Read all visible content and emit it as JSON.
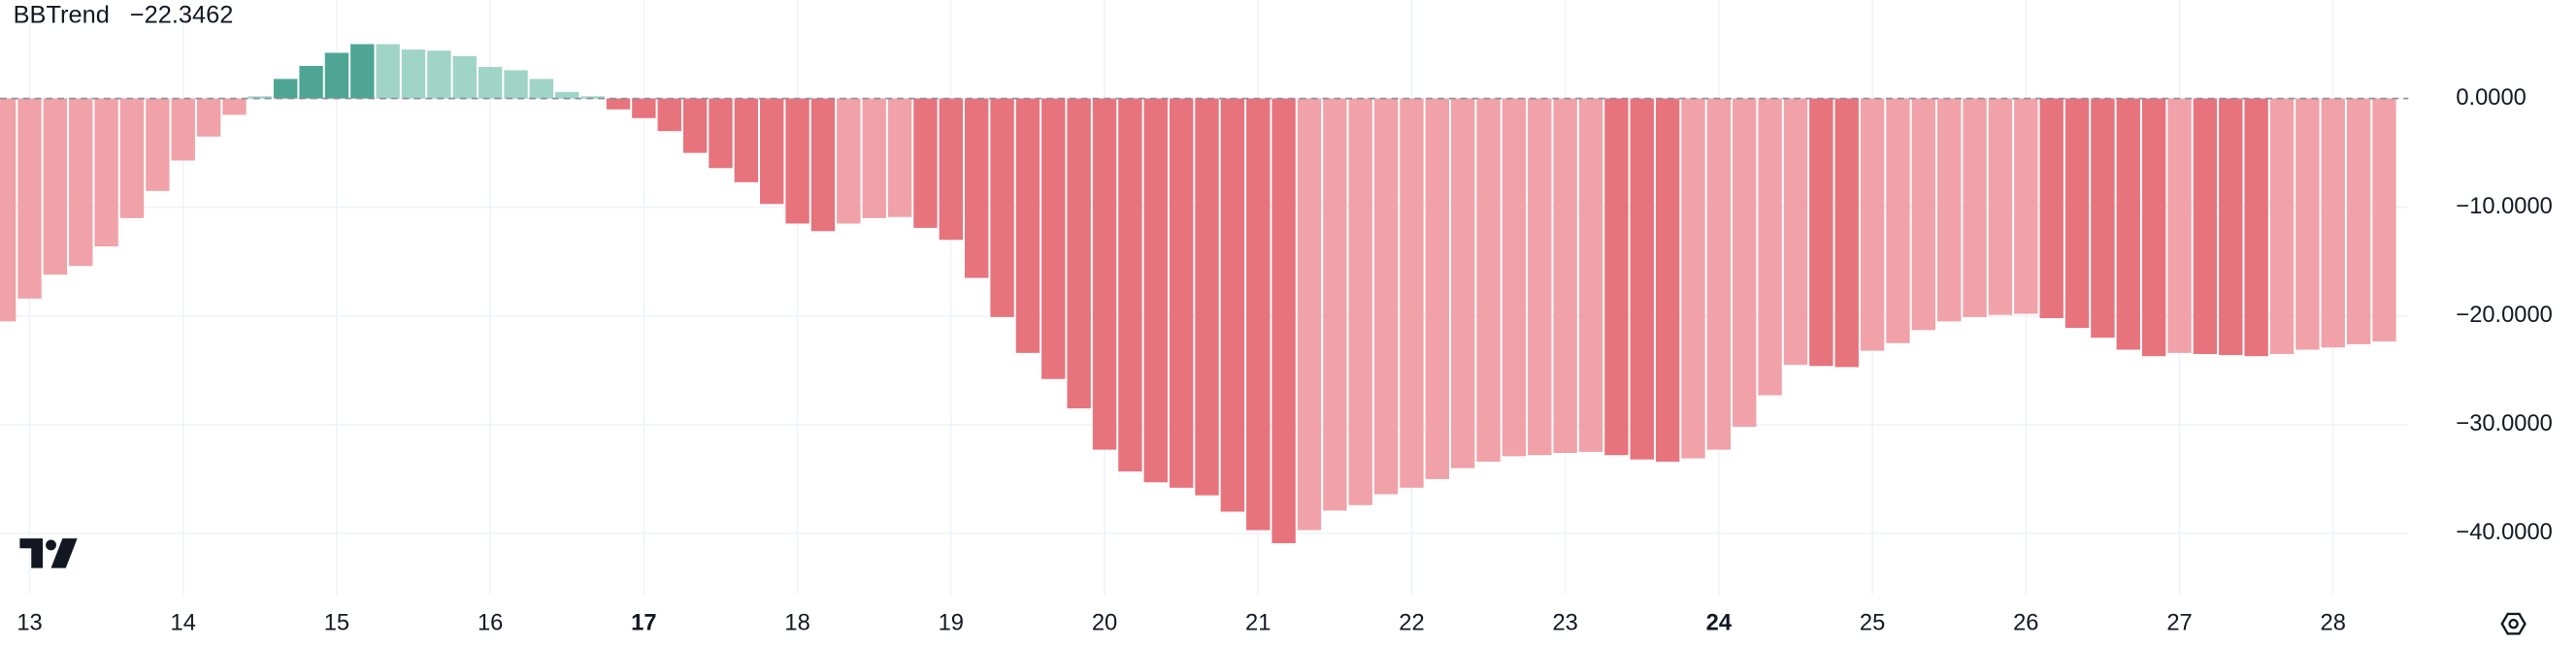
{
  "chart_data": {
    "type": "bar",
    "title": "BBTrend",
    "header_value": "−22.3462",
    "header_value_color": "#e5494f",
    "categories": [
      null,
      "13",
      null,
      null,
      null,
      null,
      null,
      "14",
      null,
      null,
      null,
      null,
      null,
      "15",
      null,
      null,
      null,
      null,
      null,
      "16",
      null,
      null,
      null,
      null,
      null,
      "17",
      null,
      null,
      null,
      null,
      null,
      "18",
      null,
      null,
      null,
      null,
      null,
      "19",
      null,
      null,
      null,
      null,
      null,
      "20",
      null,
      null,
      null,
      null,
      null,
      "21",
      null,
      null,
      null,
      null,
      null,
      "22",
      null,
      null,
      null,
      null,
      null,
      "23",
      null,
      null,
      null,
      null,
      null,
      "24",
      null,
      null,
      null,
      null,
      null,
      "25",
      null,
      null,
      null,
      null,
      null,
      "26",
      null,
      null,
      null,
      null,
      null,
      "27",
      null,
      null,
      null,
      null,
      null,
      "28",
      null,
      null
    ],
    "bold_categories": [
      "17",
      "24"
    ],
    "values": [
      -20.5,
      -18.4,
      -16.2,
      -15.4,
      -13.6,
      -11.0,
      -8.5,
      -5.7,
      -3.5,
      -1.5,
      0.2,
      1.8,
      3.0,
      4.2,
      5.0,
      5.0,
      4.5,
      4.4,
      3.9,
      2.9,
      2.6,
      1.8,
      0.6,
      0.2,
      -1.0,
      -1.8,
      -3.0,
      -5.0,
      -6.4,
      -7.7,
      -9.7,
      -11.5,
      -12.2,
      -11.5,
      -11.0,
      -10.9,
      -11.9,
      -13.0,
      -16.5,
      -20.1,
      -23.4,
      -25.8,
      -28.5,
      -32.3,
      -34.3,
      -35.3,
      -35.8,
      -36.5,
      -38.0,
      -39.7,
      -40.9,
      -39.7,
      -37.9,
      -37.4,
      -36.4,
      -35.8,
      -35.0,
      -34.0,
      -33.4,
      -32.9,
      -32.8,
      -32.6,
      -32.5,
      -32.8,
      -33.2,
      -33.4,
      -33.1,
      -32.3,
      -30.2,
      -27.3,
      -24.5,
      -24.6,
      -24.7,
      -23.2,
      -22.5,
      -21.3,
      -20.5,
      -20.1,
      -19.9,
      -19.8,
      -20.2,
      -21.1,
      -22.0,
      -23.1,
      -23.7,
      -23.4,
      -23.5,
      -23.6,
      -23.7,
      -23.5,
      -23.1,
      -22.9,
      -22.6,
      -22.3462
    ],
    "colors": {
      "positive_growing": "#4ea593",
      "positive_falling": "#9fd4c6",
      "negative_growing": "#e7737c",
      "negative_falling": "#f0a2a8"
    },
    "ylim": [
      -45.6,
      9.06
    ],
    "yticks": [
      {
        "value": 0,
        "label": "0.0000"
      },
      {
        "value": -10,
        "label": "−10.0000"
      },
      {
        "value": -20,
        "label": "−20.0000"
      },
      {
        "value": -30,
        "label": "−30.0000"
      },
      {
        "value": -40,
        "label": "−40.0000"
      }
    ],
    "grid": true
  }
}
